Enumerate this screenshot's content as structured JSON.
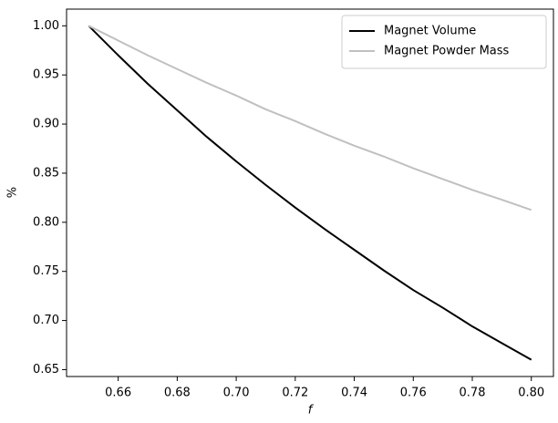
{
  "chart_data": {
    "type": "line",
    "xlabel": "f",
    "ylabel": "%",
    "x": [
      0.65,
      0.66,
      0.67,
      0.68,
      0.69,
      0.7,
      0.71,
      0.72,
      0.73,
      0.74,
      0.75,
      0.76,
      0.77,
      0.78,
      0.79,
      0.8
    ],
    "series": [
      {
        "name": "Magnet Volume",
        "color": "#000000",
        "values": [
          1.0,
          0.97,
          0.941,
          0.914,
          0.887,
          0.862,
          0.838,
          0.815,
          0.793,
          0.772,
          0.751,
          0.731,
          0.713,
          0.694,
          0.677,
          0.66
        ]
      },
      {
        "name": "Magnet Powder Mass",
        "color": "#c0c0c0",
        "values": [
          1.0,
          0.985,
          0.97,
          0.956,
          0.942,
          0.929,
          0.915,
          0.903,
          0.89,
          0.878,
          0.867,
          0.855,
          0.844,
          0.833,
          0.823,
          0.8125
        ]
      }
    ],
    "xlim": [
      0.6425,
      0.8075
    ],
    "ylim": [
      0.643,
      1.017
    ],
    "xticks": [
      {
        "value": 0.66,
        "label": "0.66"
      },
      {
        "value": 0.68,
        "label": "0.68"
      },
      {
        "value": 0.7,
        "label": "0.70"
      },
      {
        "value": 0.72,
        "label": "0.72"
      },
      {
        "value": 0.74,
        "label": "0.74"
      },
      {
        "value": 0.76,
        "label": "0.76"
      },
      {
        "value": 0.78,
        "label": "0.78"
      },
      {
        "value": 0.8,
        "label": "0.80"
      }
    ],
    "yticks": [
      {
        "value": 0.65,
        "label": "0.65"
      },
      {
        "value": 0.7,
        "label": "0.70"
      },
      {
        "value": 0.75,
        "label": "0.75"
      },
      {
        "value": 0.8,
        "label": "0.80"
      },
      {
        "value": 0.85,
        "label": "0.85"
      },
      {
        "value": 0.9,
        "label": "0.90"
      },
      {
        "value": 0.95,
        "label": "0.95"
      },
      {
        "value": 1.0,
        "label": "1.00"
      }
    ],
    "legend": "upper right",
    "grid": false
  }
}
